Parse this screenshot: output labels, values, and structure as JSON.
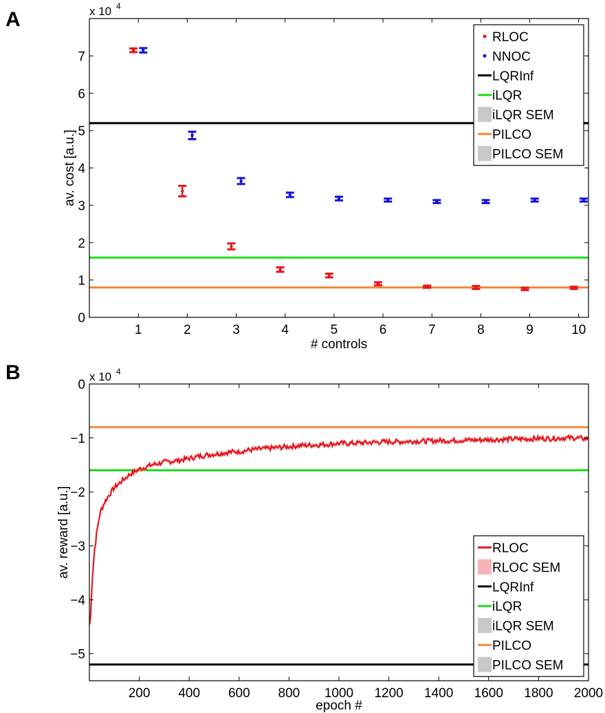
{
  "chart_data": [
    {
      "panel": "A",
      "type": "scatter",
      "xlabel": "# controls",
      "ylabel": "av. cost [a.u.]",
      "scale_label": "x 10",
      "scale_exponent": "4",
      "xlim": [
        0,
        10.2
      ],
      "ylim": [
        0,
        8
      ],
      "xticks": [
        1,
        2,
        3,
        4,
        5,
        6,
        7,
        8,
        9,
        10
      ],
      "yticks": [
        0,
        1,
        2,
        3,
        4,
        5,
        6,
        7
      ],
      "series": [
        {
          "name": "RLOC",
          "color": "#e8141c",
          "marker": "point-errorbar",
          "x_offset": -0.1,
          "x": [
            1,
            2,
            3,
            4,
            5,
            6,
            7,
            8,
            9,
            10
          ],
          "y": [
            7.15,
            3.38,
            1.9,
            1.28,
            1.12,
            0.9,
            0.82,
            0.8,
            0.76,
            0.79
          ],
          "err": [
            0.05,
            0.14,
            0.08,
            0.06,
            0.05,
            0.04,
            0.03,
            0.04,
            0.03,
            0.03
          ]
        },
        {
          "name": "NNOC",
          "color": "#1414dc",
          "marker": "point-errorbar",
          "x_offset": 0.1,
          "x": [
            1,
            2,
            3,
            4,
            5,
            6,
            7,
            8,
            9,
            10
          ],
          "y": [
            7.15,
            4.87,
            3.65,
            3.28,
            3.18,
            3.14,
            3.1,
            3.1,
            3.14,
            3.14
          ],
          "err": [
            0.06,
            0.1,
            0.08,
            0.06,
            0.05,
            0.04,
            0.04,
            0.04,
            0.04,
            0.04
          ]
        }
      ],
      "reference_lines": [
        {
          "name": "LQRInf",
          "y": 5.2,
          "color": "#000000"
        },
        {
          "name": "iLQR",
          "y": 1.6,
          "color": "#16e016"
        },
        {
          "name": "PILCO",
          "y": 0.8,
          "color": "#f5863c"
        }
      ],
      "legend": {
        "position": "top-right",
        "entries": [
          {
            "label": "RLOC",
            "style": "point",
            "color": "#e8141c"
          },
          {
            "label": "NNOC",
            "style": "point",
            "color": "#1414dc"
          },
          {
            "label": "LQRInf",
            "style": "line",
            "color": "#000000"
          },
          {
            "label": "iLQR",
            "style": "line",
            "color": "#16e016"
          },
          {
            "label": "iLQR SEM",
            "style": "patch",
            "color": "#c8c8c8"
          },
          {
            "label": "PILCO",
            "style": "line",
            "color": "#f5863c"
          },
          {
            "label": "PILCO SEM",
            "style": "patch",
            "color": "#c8c8c8"
          }
        ]
      }
    },
    {
      "panel": "B",
      "type": "line",
      "xlabel": "epoch #",
      "ylabel": "av. reward [a.u.]",
      "scale_label": "x 10",
      "scale_exponent": "4",
      "xlim": [
        0,
        2000
      ],
      "ylim": [
        -5.5,
        0
      ],
      "xticks": [
        200,
        400,
        600,
        800,
        1000,
        1200,
        1400,
        1600,
        1800,
        2000
      ],
      "yticks": [
        0,
        -1,
        -2,
        -3,
        -4,
        -5
      ],
      "ytick_labels": [
        "0",
        "−1",
        "−2",
        "−3",
        "−4",
        "−5"
      ],
      "series": [
        {
          "name": "RLOC",
          "color": "#e8141c",
          "sem_color": "#f7b3b8",
          "x": [
            1,
            5,
            10,
            15,
            20,
            30,
            40,
            50,
            60,
            80,
            100,
            130,
            160,
            200,
            250,
            300,
            350,
            400,
            450,
            500,
            550,
            600,
            650,
            700,
            750,
            800,
            850,
            900,
            950,
            1000,
            1050,
            1100,
            1150,
            1200,
            1250,
            1300,
            1350,
            1400,
            1450,
            1500,
            1550,
            1600,
            1650,
            1700,
            1750,
            1800,
            1850,
            1900,
            1950,
            2000
          ],
          "y": [
            -4.45,
            -4.3,
            -3.7,
            -3.4,
            -3.1,
            -2.75,
            -2.45,
            -2.3,
            -2.2,
            -2.05,
            -1.92,
            -1.8,
            -1.68,
            -1.58,
            -1.5,
            -1.45,
            -1.42,
            -1.38,
            -1.33,
            -1.3,
            -1.27,
            -1.25,
            -1.22,
            -1.2,
            -1.18,
            -1.16,
            -1.14,
            -1.13,
            -1.12,
            -1.1,
            -1.1,
            -1.09,
            -1.08,
            -1.07,
            -1.07,
            -1.06,
            -1.06,
            -1.05,
            -1.05,
            -1.04,
            -1.04,
            -1.03,
            -1.03,
            -1.02,
            -1.02,
            -1.01,
            -1.01,
            -1.0,
            -1.0,
            -1.02
          ]
        }
      ],
      "reference_lines": [
        {
          "name": "LQRInf",
          "y": -5.2,
          "color": "#000000"
        },
        {
          "name": "iLQR",
          "y": -1.6,
          "color": "#16e016"
        },
        {
          "name": "PILCO",
          "y": -0.8,
          "color": "#f5863c"
        }
      ],
      "legend": {
        "position": "bottom-right",
        "entries": [
          {
            "label": "RLOC",
            "style": "line",
            "color": "#e8141c"
          },
          {
            "label": "RLOC SEM",
            "style": "patch",
            "color": "#f7b3b8"
          },
          {
            "label": "LQRInf",
            "style": "line",
            "color": "#000000"
          },
          {
            "label": "iLQR",
            "style": "line",
            "color": "#16e016"
          },
          {
            "label": "iLQR SEM",
            "style": "patch",
            "color": "#c8c8c8"
          },
          {
            "label": "PILCO",
            "style": "line",
            "color": "#f5863c"
          },
          {
            "label": "PILCO SEM",
            "style": "patch",
            "color": "#c8c8c8"
          }
        ]
      }
    }
  ],
  "panels": {
    "a": {
      "letter": "A"
    },
    "b": {
      "letter": "B"
    }
  }
}
